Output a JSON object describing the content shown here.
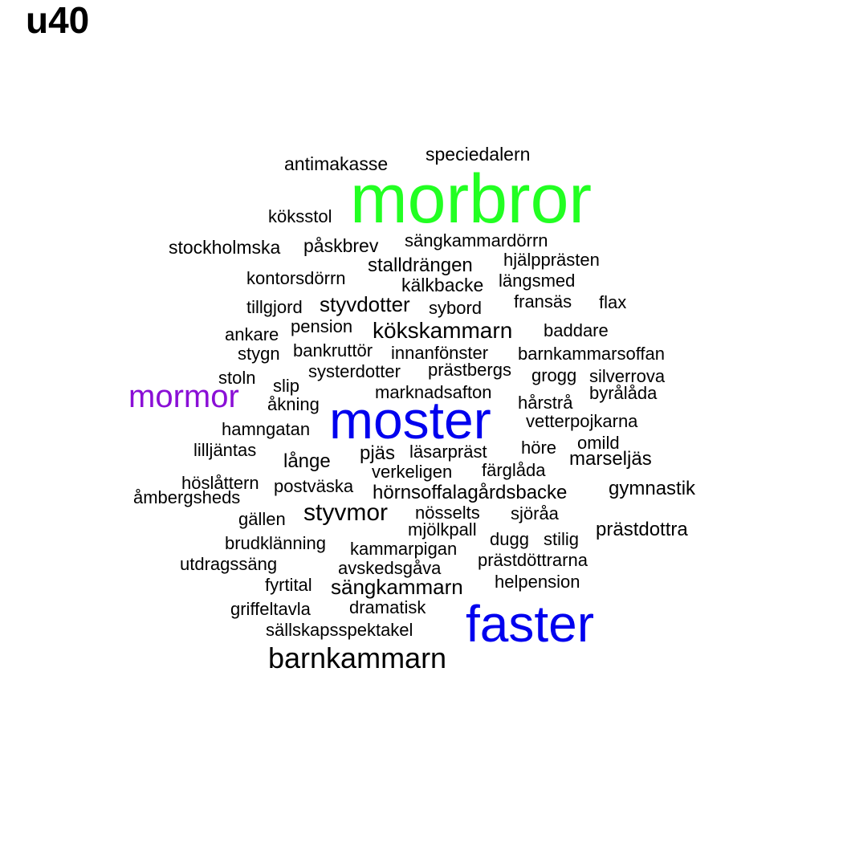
{
  "title": "u40",
  "colors": {
    "default": "#000000",
    "green": "#22ff22",
    "blue": "#0000ee",
    "purple": "#8a0fd6"
  },
  "words": [
    {
      "text": "morbror",
      "color": "green"
    },
    {
      "text": "moster",
      "color": "blue"
    },
    {
      "text": "faster",
      "color": "blue"
    },
    {
      "text": "mormor",
      "color": "purple"
    },
    {
      "text": "barnkammarn"
    },
    {
      "text": "styvmor"
    },
    {
      "text": "kökskammarn"
    },
    {
      "text": "speciedalern"
    },
    {
      "text": "antimakasse"
    },
    {
      "text": "köksstol"
    },
    {
      "text": "stockholmska"
    },
    {
      "text": "påskbrev"
    },
    {
      "text": "sängkammardörrn"
    },
    {
      "text": "hjälpprästen"
    },
    {
      "text": "stalldrängen"
    },
    {
      "text": "kontorsdörrn"
    },
    {
      "text": "kälkbacke"
    },
    {
      "text": "längsmed"
    },
    {
      "text": "tillgjord"
    },
    {
      "text": "styvdotter"
    },
    {
      "text": "sybord"
    },
    {
      "text": "fransäs"
    },
    {
      "text": "flax"
    },
    {
      "text": "ankare"
    },
    {
      "text": "pension"
    },
    {
      "text": "baddare"
    },
    {
      "text": "stygn"
    },
    {
      "text": "bankruttör"
    },
    {
      "text": "innanfönster"
    },
    {
      "text": "barnkammarsoffan"
    },
    {
      "text": "stoln"
    },
    {
      "text": "systerdotter"
    },
    {
      "text": "prästbergs"
    },
    {
      "text": "grogg"
    },
    {
      "text": "silverrova"
    },
    {
      "text": "slip"
    },
    {
      "text": "marknadsafton"
    },
    {
      "text": "byrålåda"
    },
    {
      "text": "åkning"
    },
    {
      "text": "hårstrå"
    },
    {
      "text": "vetterpojkarna"
    },
    {
      "text": "hamngatan"
    },
    {
      "text": "omild"
    },
    {
      "text": "lilljäntas"
    },
    {
      "text": "pjäs"
    },
    {
      "text": "läsarpräst"
    },
    {
      "text": "höre"
    },
    {
      "text": "marseljäs"
    },
    {
      "text": "långe"
    },
    {
      "text": "verkeligen"
    },
    {
      "text": "färglåda"
    },
    {
      "text": "höslåttern"
    },
    {
      "text": "postväska"
    },
    {
      "text": "hörnsoffalagårdsbacke"
    },
    {
      "text": "gymnastik"
    },
    {
      "text": "åmbergsheds"
    },
    {
      "text": "nösselts"
    },
    {
      "text": "sjöråa"
    },
    {
      "text": "gällen"
    },
    {
      "text": "mjölkpall"
    },
    {
      "text": "prästdottra"
    },
    {
      "text": "brudklänning"
    },
    {
      "text": "dugg"
    },
    {
      "text": "stilig"
    },
    {
      "text": "kammarpigan"
    },
    {
      "text": "utdragssäng"
    },
    {
      "text": "prästdöttrarna"
    },
    {
      "text": "avskedsgåva"
    },
    {
      "text": "fyrtital"
    },
    {
      "text": "sängkammarn"
    },
    {
      "text": "helpension"
    },
    {
      "text": "griffeltavla"
    },
    {
      "text": "dramatisk"
    },
    {
      "text": "sällskapsspektakel"
    }
  ]
}
